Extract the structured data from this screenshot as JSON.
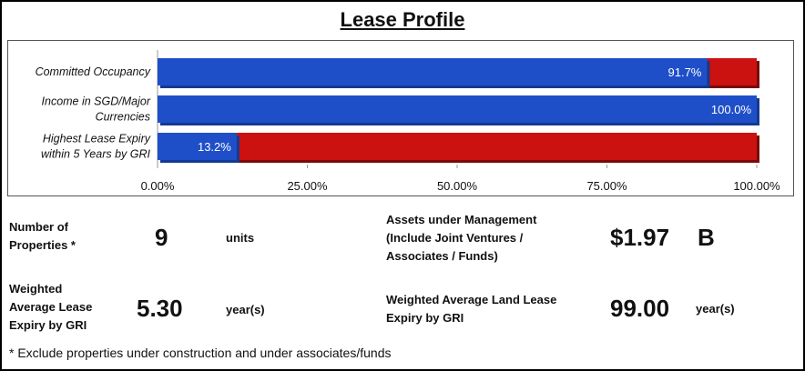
{
  "title": "Lease Profile",
  "colors": {
    "primary": "#1f4fc8",
    "remainder": "#cc1111",
    "text": "#111111"
  },
  "chart_data": {
    "type": "bar",
    "orientation": "horizontal",
    "stacked": true,
    "categories": [
      "Committed Occupancy",
      "Income in SGD/Major Currencies",
      "Highest Lease Expiry within 5 Years by GRI"
    ],
    "category_lines": [
      [
        "Committed Occupancy"
      ],
      [
        "Income in SGD/Major",
        "Currencies"
      ],
      [
        "Highest Lease Expiry",
        "within 5 Years by GRI"
      ]
    ],
    "values": [
      91.7,
      100.0,
      13.2
    ],
    "value_labels": [
      "91.7%",
      "100.0%",
      "13.2%"
    ],
    "remainder_total": 100,
    "xlim": [
      0,
      100
    ],
    "ticks": [
      "0.00%",
      "25.00%",
      "50.00%",
      "75.00%",
      "100.00%"
    ],
    "tick_values": [
      0,
      25,
      50,
      75,
      100
    ],
    "grid": false
  },
  "stats": {
    "num_properties": {
      "label": "Number of Properties *",
      "label_lines": [
        "Number of",
        "Properties *"
      ],
      "value": "9",
      "unit": "units"
    },
    "wale": {
      "label": "Weighted Average Lease Expiry by GRI",
      "label_lines": [
        "Weighted",
        "Average Lease",
        "Expiry by GRI"
      ],
      "value": "5.30",
      "unit": "year(s)"
    },
    "aum": {
      "label": "Assets under Management (Include Joint Ventures / Associates / Funds)",
      "label_lines": [
        "Assets under Management",
        "(Include Joint Ventures /",
        "Associates / Funds)"
      ],
      "value": "$1.97",
      "unit": "B"
    },
    "walle": {
      "label": "Weighted Average Land Lease Expiry by GRI",
      "label_lines": [
        "Weighted Average Land Lease",
        "Expiry by GRI"
      ],
      "value": "99.00",
      "unit": "year(s)"
    }
  },
  "footnote": "* Exclude properties under construction and under associates/funds"
}
